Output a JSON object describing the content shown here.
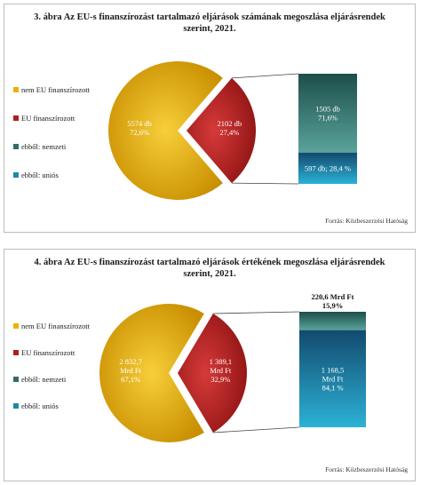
{
  "colors": {
    "nem_eu": "#e9b200",
    "eu": "#b01e1e",
    "nemzeti": "#2f6e68",
    "unios": "#1f86a8"
  },
  "chart_data": [
    {
      "type": "pie",
      "title": "3. ábra Az EU-s finanszírozást tartalmazó eljárások számának megoszlása eljárásrendek szerint, 2021.",
      "source": "Forrás: Közbeszerzési Hatóság",
      "legend": [
        "nem EU finanszírozott",
        "EU finanszírozott",
        "ebből: nemzeti",
        "ebből: uniós"
      ],
      "slices": [
        {
          "name": "nem EU finanszírozott",
          "value": 5574,
          "percent": 72.6,
          "label": [
            "5574 db",
            "72,6%"
          ]
        },
        {
          "name": "EU finanszírozott",
          "value": 2102,
          "percent": 27.4,
          "label": [
            "2102 db",
            "27,4%"
          ]
        }
      ],
      "breakdown": [
        {
          "name": "ebből: nemzeti",
          "value": 1505,
          "percent": 71.6,
          "label": [
            "1505 db",
            "71,6%"
          ]
        },
        {
          "name": "ebből: uniós",
          "value": 597,
          "percent": 28.4,
          "label": [
            "597 db; 28,4 %"
          ]
        }
      ]
    },
    {
      "type": "pie",
      "title": "4. ábra Az EU-s finanszírozást tartalmazó eljárások értékének megoszlása eljárásrendek szerint, 2021.",
      "source": "Forrás: Közbeszerzési Hatóság",
      "legend": [
        "nem EU finanszírozott",
        "EU finanszírozott",
        "ebből: nemzeti",
        "ebből: uniós"
      ],
      "slices": [
        {
          "name": "nem EU finanszírozott",
          "value": 2832.7,
          "percent": 67.1,
          "label": [
            "2 832,7",
            "Mrd Ft",
            "67,1%"
          ]
        },
        {
          "name": "EU finanszírozott",
          "value": 1389.1,
          "percent": 32.9,
          "label": [
            "1 389,1",
            "Mrd Ft",
            "32,9%"
          ]
        }
      ],
      "breakdown": [
        {
          "name": "ebből: nemzeti",
          "value": 220.6,
          "percent": 15.9,
          "label": [
            "220,6 Mrd Ft",
            "15,9%"
          ]
        },
        {
          "name": "ebből: uniós",
          "value": 1168.5,
          "percent": 84.1,
          "label": [
            "1 168,5",
            "Mrd Ft",
            "84,1 %"
          ]
        }
      ]
    }
  ]
}
